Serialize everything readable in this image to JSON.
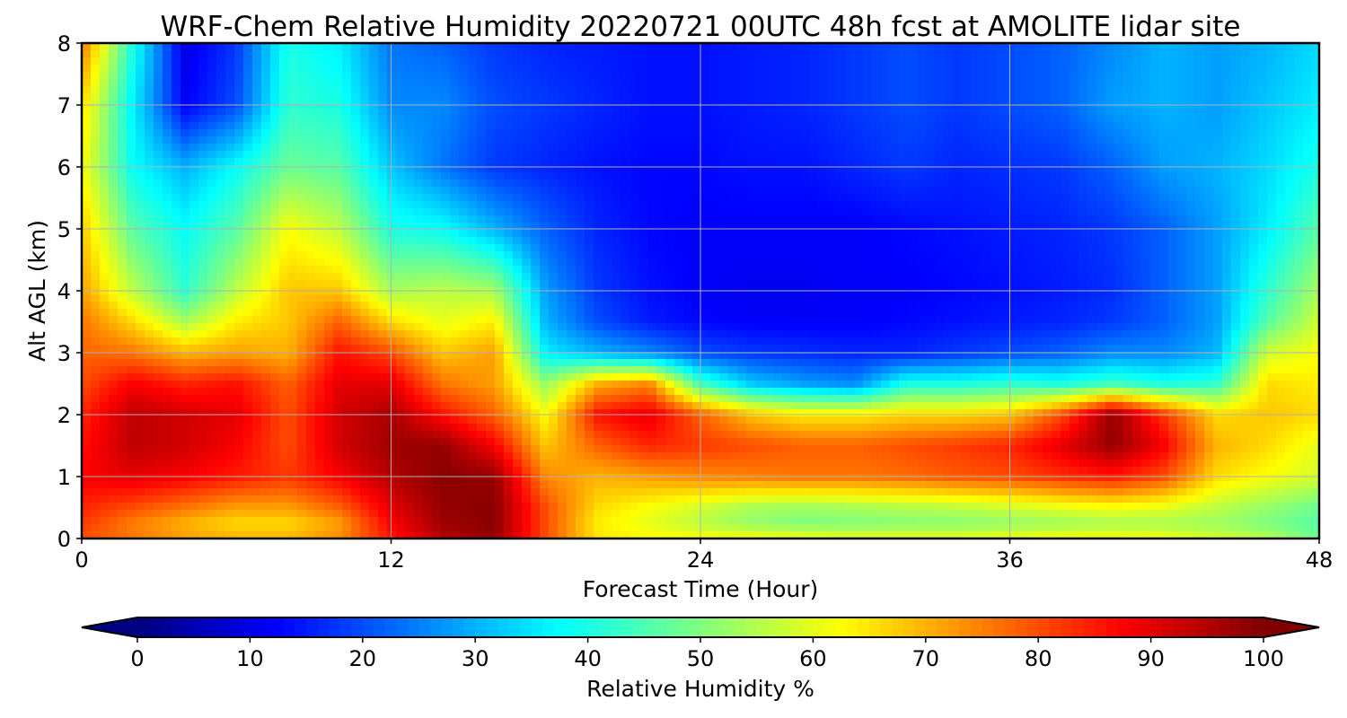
{
  "chart_data": {
    "type": "heatmap",
    "title": "WRF-Chem Relative Humidity 20220721 00UTC 48h fcst at AMOLITE lidar site",
    "xlabel": "Forecast Time (Hour)",
    "ylabel": "Alt AGL (km)",
    "xlim": [
      0,
      48
    ],
    "ylim": [
      0,
      8
    ],
    "x_ticks": [
      0,
      12,
      24,
      36,
      48
    ],
    "y_ticks": [
      0,
      1,
      2,
      3,
      4,
      5,
      6,
      7,
      8
    ],
    "grid": true,
    "colormap": "jet",
    "colorbar": {
      "label": "Relative Humidity %",
      "range": [
        0,
        100
      ],
      "ticks": [
        0,
        10,
        20,
        30,
        40,
        50,
        60,
        70,
        80,
        90,
        100
      ],
      "extend": "both",
      "orientation": "horizontal",
      "placement": "bottom"
    },
    "x": [
      0,
      2,
      4,
      6,
      8,
      10,
      12,
      14,
      16,
      18,
      20,
      22,
      24,
      26,
      28,
      30,
      32,
      34,
      36,
      38,
      40,
      42,
      44,
      46,
      48
    ],
    "y": [
      0,
      0.25,
      0.5,
      1,
      1.5,
      2,
      2.5,
      3,
      3.5,
      4,
      5,
      6,
      7,
      8
    ],
    "values": [
      [
        80,
        76,
        72,
        70,
        70,
        74,
        85,
        95,
        98,
        80,
        65,
        63,
        62,
        62,
        61,
        60,
        60,
        60,
        61,
        62,
        62,
        61,
        58,
        55,
        48
      ],
      [
        82,
        75,
        70,
        66,
        66,
        72,
        88,
        97,
        99,
        80,
        64,
        60,
        56,
        52,
        50,
        50,
        51,
        51,
        52,
        53,
        54,
        54,
        53,
        50,
        46
      ],
      [
        84,
        80,
        76,
        72,
        72,
        78,
        90,
        98,
        99,
        80,
        66,
        62,
        58,
        54,
        53,
        54,
        55,
        56,
        58,
        60,
        62,
        60,
        56,
        52,
        48
      ],
      [
        88,
        90,
        88,
        85,
        82,
        88,
        95,
        99,
        98,
        74,
        70,
        72,
        74,
        75,
        76,
        76,
        77,
        79,
        80,
        83,
        85,
        80,
        66,
        62,
        58
      ],
      [
        86,
        94,
        92,
        88,
        80,
        92,
        97,
        98,
        88,
        68,
        78,
        84,
        82,
        80,
        78,
        78,
        80,
        82,
        84,
        90,
        98,
        88,
        70,
        66,
        60
      ],
      [
        84,
        94,
        92,
        90,
        80,
        92,
        96,
        86,
        78,
        62,
        86,
        90,
        78,
        68,
        64,
        64,
        66,
        66,
        68,
        80,
        98,
        82,
        66,
        68,
        66
      ],
      [
        80,
        88,
        84,
        86,
        78,
        90,
        90,
        76,
        72,
        52,
        70,
        74,
        44,
        32,
        28,
        26,
        40,
        40,
        42,
        40,
        44,
        40,
        42,
        66,
        64
      ],
      [
        78,
        76,
        70,
        72,
        70,
        86,
        80,
        68,
        72,
        36,
        30,
        26,
        20,
        18,
        17,
        16,
        16,
        18,
        20,
        22,
        26,
        26,
        30,
        58,
        62
      ],
      [
        76,
        66,
        54,
        64,
        68,
        78,
        66,
        60,
        64,
        30,
        20,
        15,
        13,
        12,
        12,
        12,
        13,
        14,
        15,
        16,
        18,
        22,
        28,
        46,
        58
      ],
      [
        72,
        56,
        42,
        56,
        68,
        68,
        54,
        56,
        54,
        28,
        18,
        14,
        12,
        11,
        11,
        12,
        12,
        13,
        14,
        15,
        17,
        22,
        28,
        42,
        54
      ],
      [
        68,
        46,
        38,
        46,
        62,
        56,
        40,
        38,
        30,
        22,
        16,
        13,
        12,
        12,
        12,
        12,
        13,
        14,
        15,
        16,
        18,
        22,
        28,
        36,
        46
      ],
      [
        62,
        38,
        30,
        38,
        48,
        46,
        32,
        24,
        18,
        16,
        14,
        13,
        13,
        14,
        14,
        16,
        18,
        16,
        17,
        18,
        22,
        28,
        30,
        34,
        40
      ],
      [
        66,
        36,
        12,
        20,
        42,
        40,
        26,
        26,
        20,
        18,
        16,
        14,
        14,
        15,
        16,
        18,
        20,
        18,
        20,
        22,
        28,
        30,
        28,
        32,
        36
      ],
      [
        76,
        40,
        10,
        18,
        40,
        36,
        24,
        22,
        18,
        16,
        15,
        14,
        14,
        15,
        16,
        18,
        20,
        18,
        20,
        22,
        26,
        30,
        28,
        30,
        34
      ]
    ]
  }
}
